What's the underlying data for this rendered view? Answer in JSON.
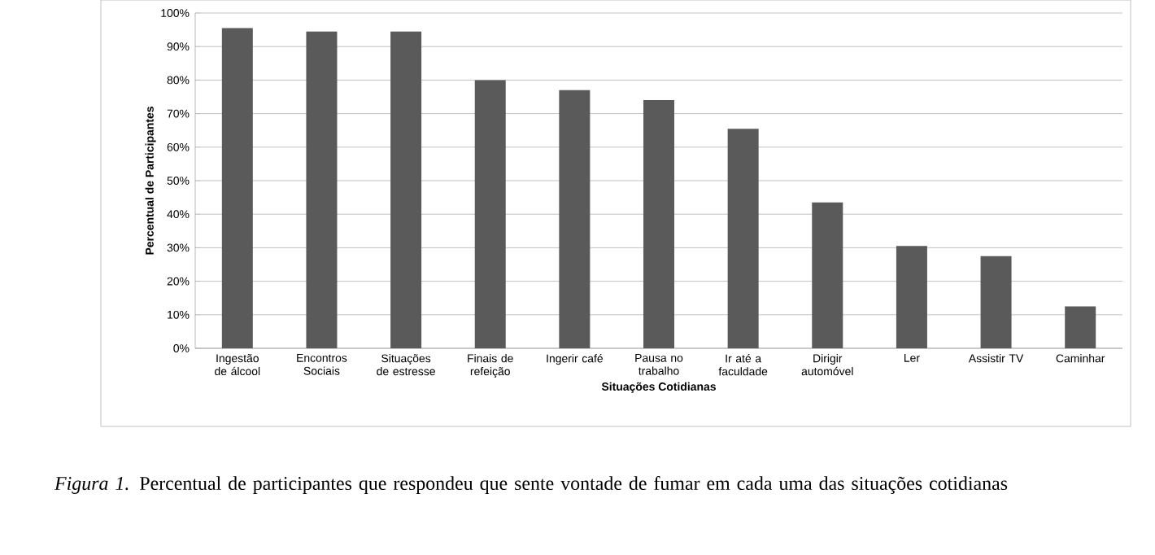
{
  "chart_data": {
    "type": "bar",
    "xlabel": "Situações Cotidianas",
    "ylabel": "Percentual de Participantes",
    "categories": [
      "Ingestão de álcool",
      "Encontros Sociais",
      "Situações de estresse",
      "Finais de refeição",
      "Ingerir café",
      "Pausa no trabalho",
      "Ir até a faculdade",
      "Dirigir automóvel",
      "Ler",
      "Assistir TV",
      "Caminhar"
    ],
    "values": [
      95.5,
      94.5,
      94.5,
      80,
      77,
      74,
      65.5,
      43.5,
      30.5,
      27.5,
      12.5
    ],
    "color": "#5a5a5a",
    "ylim": [
      0,
      100
    ],
    "yticks": [
      {
        "value": 0,
        "label": "0%"
      },
      {
        "value": 10,
        "label": "10%"
      },
      {
        "value": 20,
        "label": "20%"
      },
      {
        "value": 30,
        "label": "30%"
      },
      {
        "value": 40,
        "label": "40%"
      },
      {
        "value": 50,
        "label": "50%"
      },
      {
        "value": 60,
        "label": "60%"
      },
      {
        "value": 70,
        "label": "70%"
      },
      {
        "value": 80,
        "label": "80%"
      },
      {
        "value": 90,
        "label": "90%"
      },
      {
        "value": 100,
        "label": "100%"
      }
    ],
    "grid": "y",
    "annotations": [
      "*Figura 1.*  Percentual de participantes que respondeu que sente vontade de fumar em cada uma das situações cotidianas"
    ]
  }
}
